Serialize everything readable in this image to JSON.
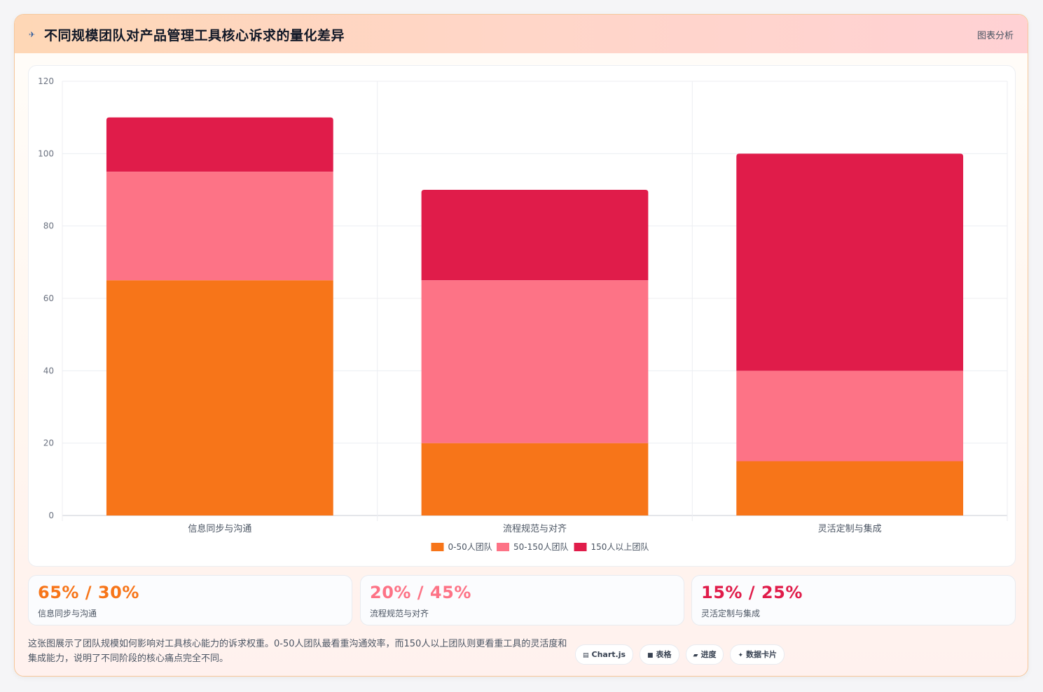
{
  "header": {
    "icon": "plane-icon",
    "title": "不同规模团队对产品管理工具核心诉求的量化差异",
    "tag": "图表分析"
  },
  "chart_data": {
    "type": "bar",
    "stacked": true,
    "categories": [
      "信息同步与沟通",
      "流程规范与对齐",
      "灵活定制与集成"
    ],
    "series": [
      {
        "name": "0-50人团队",
        "values": [
          65,
          20,
          15
        ],
        "color": "#f77519"
      },
      {
        "name": "50-150人团队",
        "values": [
          30,
          45,
          25
        ],
        "color": "#fd7386"
      },
      {
        "name": "150人以上团队",
        "values": [
          15,
          25,
          60
        ],
        "color": "#e01c4a"
      }
    ],
    "ylim": [
      0,
      120
    ],
    "yticks": [
      0,
      20,
      40,
      60,
      80,
      100,
      120
    ],
    "grid": true,
    "legend": "bottom-center"
  },
  "stats": [
    {
      "value": "65% / 30%",
      "label": "信息同步与沟通",
      "color": "#f77519"
    },
    {
      "value": "20% / 45%",
      "label": "流程规范与对齐",
      "color": "#fd7386"
    },
    {
      "value": "15% / 25%",
      "label": "灵活定制与集成",
      "color": "#e01c4a"
    }
  ],
  "footnote": "这张图展示了团队规模如何影响对工具核心能力的诉求权重。0-50人团队最看重沟通效率，而150人以上团队则更看重工具的灵活度和集成能力，说明了不同阶段的核心痛点完全不同。",
  "chips": [
    {
      "icon": "▤",
      "label": "Chart.js"
    },
    {
      "icon": "■",
      "label": "表格"
    },
    {
      "icon": "▰",
      "label": "进度"
    },
    {
      "icon": "✦",
      "label": "数据卡片"
    }
  ]
}
